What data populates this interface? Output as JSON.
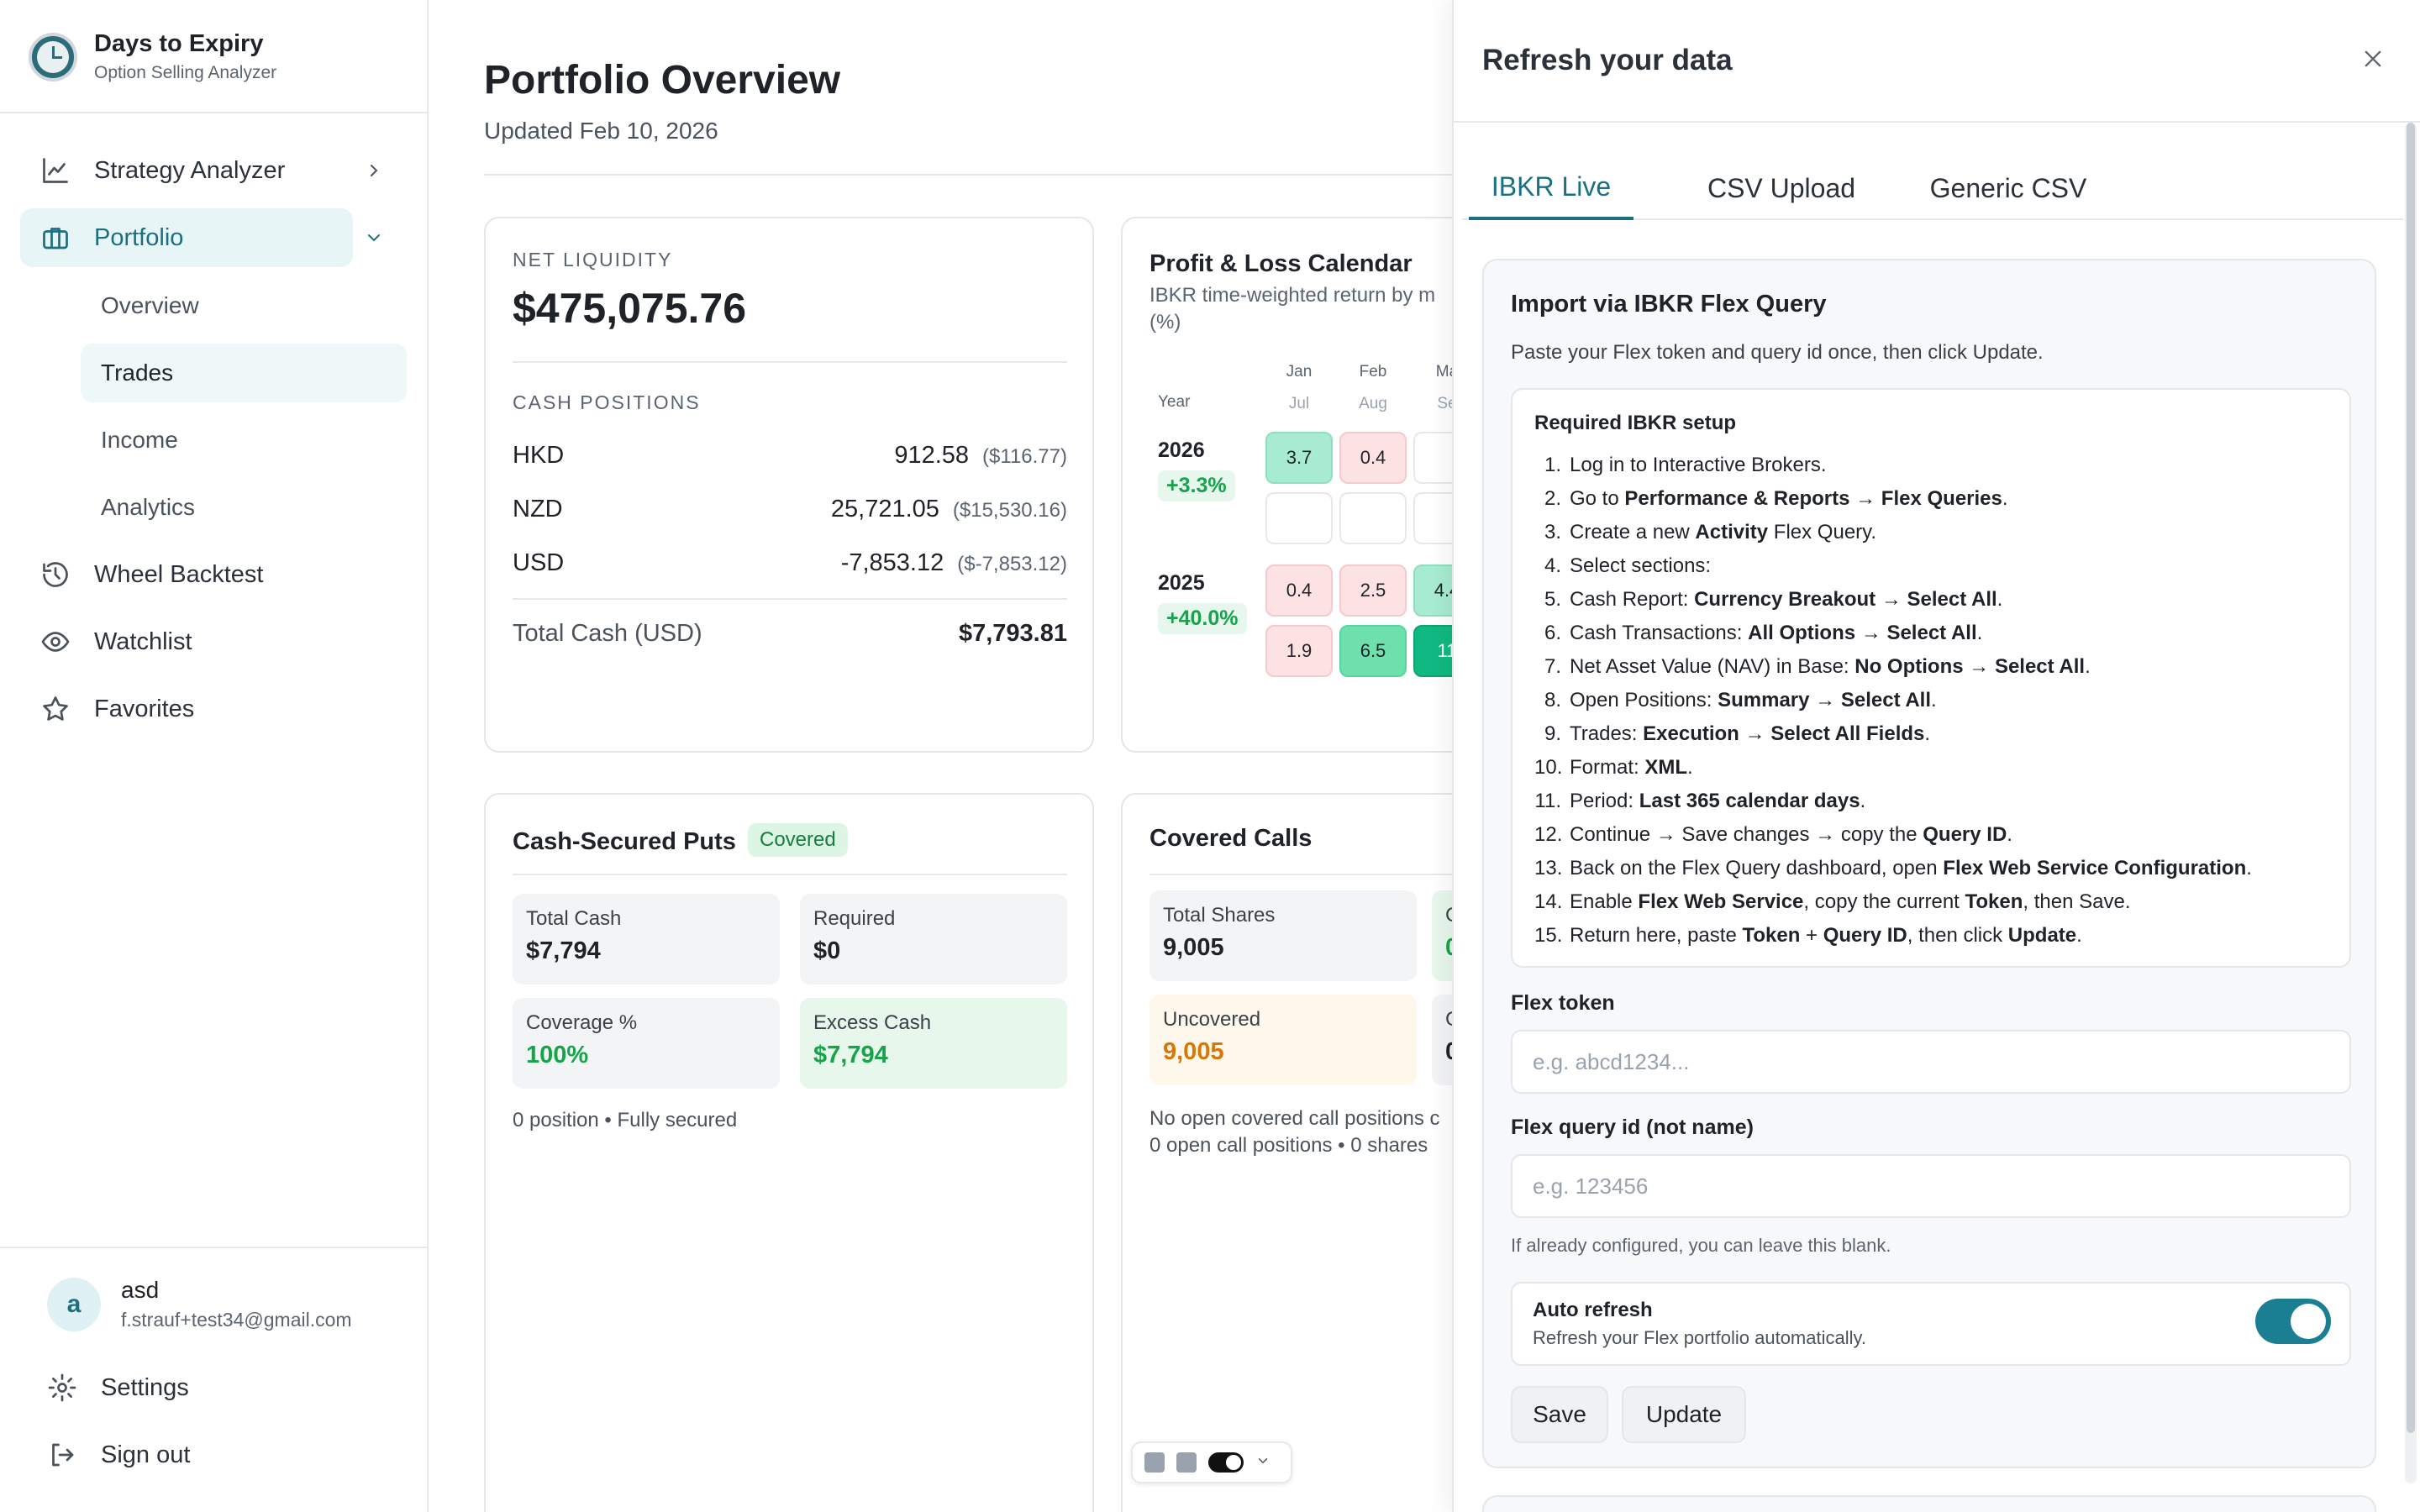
{
  "brand": {
    "title": "Days to Expiry",
    "subtitle": "Option Selling Analyzer"
  },
  "sidebar": {
    "nav": [
      {
        "label": "Strategy Analyzer",
        "icon": "chart-line-icon"
      },
      {
        "label": "Portfolio",
        "icon": "briefcase-icon"
      },
      {
        "label": "Wheel Backtest",
        "icon": "history-icon"
      },
      {
        "label": "Watchlist",
        "icon": "eye-icon"
      },
      {
        "label": "Favorites",
        "icon": "star-icon"
      }
    ],
    "portfolio_sub": [
      "Overview",
      "Trades",
      "Income",
      "Analytics"
    ],
    "active_sub": "Trades"
  },
  "user": {
    "initial": "a",
    "name": "asd",
    "email": "f.strauf+test34@gmail.com"
  },
  "bottom": {
    "settings": "Settings",
    "signout": "Sign out"
  },
  "page": {
    "title": "Portfolio Overview",
    "updated": "Updated Feb 10, 2026"
  },
  "net_liquidity": {
    "label": "NET LIQUIDITY",
    "value": "$475,075.76",
    "cash_label": "CASH POSITIONS",
    "positions": [
      {
        "currency": "HKD",
        "amount": "912.58",
        "usd": "($116.77)"
      },
      {
        "currency": "NZD",
        "amount": "25,721.05",
        "usd": "($15,530.16)"
      },
      {
        "currency": "USD",
        "amount": "-7,853.12",
        "usd": "($-7,853.12)"
      }
    ],
    "total_label": "Total Cash (USD)",
    "total_value": "$7,793.81"
  },
  "pnl": {
    "title": "Profit & Loss Calendar",
    "subtitle": "IBKR time-weighted return by m",
    "subtitle2": "(%)",
    "year_label": "Year",
    "months_top": [
      "Jan",
      "Feb",
      "Ma"
    ],
    "months_bottom": [
      "Jul",
      "Aug",
      "Se"
    ],
    "years": [
      {
        "year": "2026",
        "pct": "+3.3%",
        "row1": [
          "3.7",
          "0.4",
          ""
        ],
        "row2": [
          "",
          "",
          ""
        ]
      },
      {
        "year": "2025",
        "pct": "+40.0%",
        "row1": [
          "0.4",
          "2.5",
          "4.4"
        ],
        "row2": [
          "1.9",
          "6.5",
          "11"
        ]
      }
    ]
  },
  "csp": {
    "title": "Cash-Secured Puts",
    "badge": "Covered",
    "stats": [
      {
        "label": "Total Cash",
        "value": "$7,794"
      },
      {
        "label": "Required",
        "value": "$0"
      },
      {
        "label": "Coverage %",
        "value": "100%"
      },
      {
        "label": "Excess Cash",
        "value": "$7,794"
      }
    ],
    "footer": "0 position • Fully secured"
  },
  "cc": {
    "title": "Covered Calls",
    "stats": [
      {
        "label": "Total Shares",
        "value": "9,005"
      },
      {
        "label": "C",
        "value": "0"
      },
      {
        "label": "Uncovered",
        "value": "9,005"
      },
      {
        "label": "C",
        "value": "0"
      }
    ],
    "footer1": "No open covered call positions c",
    "footer2": "0 open call positions • 0 shares"
  },
  "drawer": {
    "title": "Refresh your data",
    "tabs": [
      "IBKR Live",
      "CSV Upload",
      "Generic CSV"
    ],
    "active_tab": "IBKR Live",
    "import_title": "Import via IBKR Flex Query",
    "import_desc": "Paste your Flex token and query id once, then click Update.",
    "setup_title": "Required IBKR setup",
    "steps": [
      [
        {
          "t": "Log in to Interactive Brokers."
        }
      ],
      [
        {
          "t": "Go to "
        },
        {
          "t": "Performance & Reports",
          "b": true
        },
        {
          "t": " → "
        },
        {
          "t": "Flex Queries",
          "b": true
        },
        {
          "t": "."
        }
      ],
      [
        {
          "t": "Create a new "
        },
        {
          "t": "Activity",
          "b": true
        },
        {
          "t": " Flex Query."
        }
      ],
      [
        {
          "t": "Select sections:"
        }
      ],
      [
        {
          "t": "Cash Report: "
        },
        {
          "t": "Currency Breakout",
          "b": true
        },
        {
          "t": " → "
        },
        {
          "t": "Select All",
          "b": true
        },
        {
          "t": "."
        }
      ],
      [
        {
          "t": "Cash Transactions: "
        },
        {
          "t": "All Options",
          "b": true
        },
        {
          "t": " → "
        },
        {
          "t": "Select All",
          "b": true
        },
        {
          "t": "."
        }
      ],
      [
        {
          "t": "Net Asset Value (NAV) in Base: "
        },
        {
          "t": "No Options",
          "b": true
        },
        {
          "t": " → "
        },
        {
          "t": "Select All",
          "b": true
        },
        {
          "t": "."
        }
      ],
      [
        {
          "t": "Open Positions: "
        },
        {
          "t": "Summary",
          "b": true
        },
        {
          "t": " → "
        },
        {
          "t": "Select All",
          "b": true
        },
        {
          "t": "."
        }
      ],
      [
        {
          "t": "Trades: "
        },
        {
          "t": "Execution",
          "b": true
        },
        {
          "t": " → "
        },
        {
          "t": "Select All Fields",
          "b": true
        },
        {
          "t": "."
        }
      ],
      [
        {
          "t": "Format: "
        },
        {
          "t": "XML",
          "b": true
        },
        {
          "t": "."
        }
      ],
      [
        {
          "t": "Period: "
        },
        {
          "t": "Last 365 calendar days",
          "b": true
        },
        {
          "t": "."
        }
      ],
      [
        {
          "t": "Continue → Save changes → copy the "
        },
        {
          "t": "Query ID",
          "b": true
        },
        {
          "t": "."
        }
      ],
      [
        {
          "t": "Back on the Flex Query dashboard, open "
        },
        {
          "t": "Flex Web Service Configuration",
          "b": true
        },
        {
          "t": "."
        }
      ],
      [
        {
          "t": "Enable "
        },
        {
          "t": "Flex Web Service",
          "b": true
        },
        {
          "t": ", copy the current "
        },
        {
          "t": "Token",
          "b": true
        },
        {
          "t": ", then Save."
        }
      ],
      [
        {
          "t": "Return here, paste "
        },
        {
          "t": "Token",
          "b": true
        },
        {
          "t": " + "
        },
        {
          "t": "Query ID",
          "b": true
        },
        {
          "t": ", then click "
        },
        {
          "t": "Update",
          "b": true
        },
        {
          "t": "."
        }
      ]
    ],
    "token_label": "Flex token",
    "token_placeholder": "e.g. abcd1234...",
    "query_label": "Flex query id (not name)",
    "query_placeholder": "e.g. 123456",
    "query_hint": "If already configured, you can leave this blank.",
    "auto_title": "Auto refresh",
    "auto_desc": "Refresh your Flex portfolio automatically.",
    "auto_on": true,
    "save_label": "Save",
    "update_label": "Update"
  },
  "colors": {
    "accent": "#1a6f80",
    "positive": "#16a34a",
    "warning": "#d97706",
    "toggle": "#1a7f93"
  }
}
